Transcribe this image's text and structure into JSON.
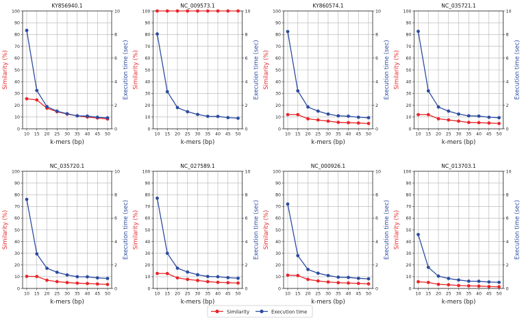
{
  "chart_data": {
    "type": "line",
    "layout": "2x4 grid, dual y-axes",
    "legend": {
      "position": "bottom-center",
      "entries": [
        "Similarity",
        "Execution time"
      ]
    },
    "colors": {
      "similarity": "#e8262a",
      "execution_time": "#2b4ba0"
    },
    "x": [
      10,
      15,
      20,
      25,
      30,
      35,
      40,
      45,
      50
    ],
    "xlabel": "k-mers (bp)",
    "ylabel_left": "Similarity (%)",
    "ylabel_right": "Execution time (sec)",
    "ylim_left": [
      0,
      100
    ],
    "ylim_right": [
      0,
      10
    ],
    "yticks_left": [
      0,
      10,
      20,
      30,
      40,
      50,
      60,
      70,
      80,
      90,
      100
    ],
    "yticks_right": [
      0,
      2,
      4,
      6,
      8,
      10
    ],
    "grid": true,
    "panels": [
      {
        "title": "KY856940.1",
        "similarity": [
          25.5,
          24.5,
          17.5,
          14.5,
          12.5,
          11,
          10,
          9.2,
          8.3
        ],
        "execution_time": [
          8.35,
          3.25,
          1.88,
          1.5,
          1.28,
          1.1,
          1.08,
          0.98,
          0.93
        ]
      },
      {
        "title": "NC_009573.1",
        "similarity": [
          100,
          100,
          100,
          100,
          100,
          100,
          100,
          100,
          100
        ],
        "execution_time": [
          8.05,
          3.15,
          1.8,
          1.45,
          1.22,
          1.06,
          1.05,
          0.95,
          0.9
        ]
      },
      {
        "title": "KY860574.1",
        "similarity": [
          12,
          12,
          8.5,
          7.5,
          6.5,
          5.5,
          5.2,
          4.9,
          4.5
        ],
        "execution_time": [
          8.25,
          3.22,
          1.85,
          1.5,
          1.25,
          1.1,
          1.07,
          0.98,
          0.94
        ]
      },
      {
        "title": "NC_035721.1",
        "similarity": [
          12,
          12,
          8.5,
          7.5,
          6.5,
          5.4,
          5.2,
          4.9,
          4.5
        ],
        "execution_time": [
          8.27,
          3.22,
          1.85,
          1.5,
          1.25,
          1.1,
          1.08,
          0.98,
          0.94
        ]
      },
      {
        "title": "NC_035720.1",
        "similarity": [
          10.3,
          10.2,
          7,
          5.8,
          5,
          4.5,
          4.2,
          3.8,
          3.4
        ],
        "execution_time": [
          7.6,
          2.95,
          1.72,
          1.38,
          1.15,
          1.0,
          0.99,
          0.9,
          0.85
        ]
      },
      {
        "title": "NC_027589.1",
        "similarity": [
          12.8,
          12.7,
          9,
          7.7,
          6.8,
          5.8,
          5.2,
          4.9,
          4.6
        ],
        "execution_time": [
          7.7,
          3.0,
          1.73,
          1.4,
          1.17,
          1.02,
          1.0,
          0.92,
          0.87
        ]
      },
      {
        "title": "NC_000926.1",
        "similarity": [
          11.3,
          11,
          7.7,
          6.4,
          5.5,
          4.9,
          4.6,
          4.3,
          3.9
        ],
        "execution_time": [
          7.2,
          2.8,
          1.62,
          1.3,
          1.1,
          0.96,
          0.94,
          0.86,
          0.82
        ]
      },
      {
        "title": "NC_013703.1",
        "similarity": [
          5.7,
          5.1,
          3.5,
          3.1,
          2.5,
          2.2,
          2.0,
          1.6,
          1.4
        ],
        "execution_time": [
          4.6,
          1.8,
          1.05,
          0.85,
          0.72,
          0.62,
          0.61,
          0.55,
          0.52
        ]
      }
    ]
  }
}
